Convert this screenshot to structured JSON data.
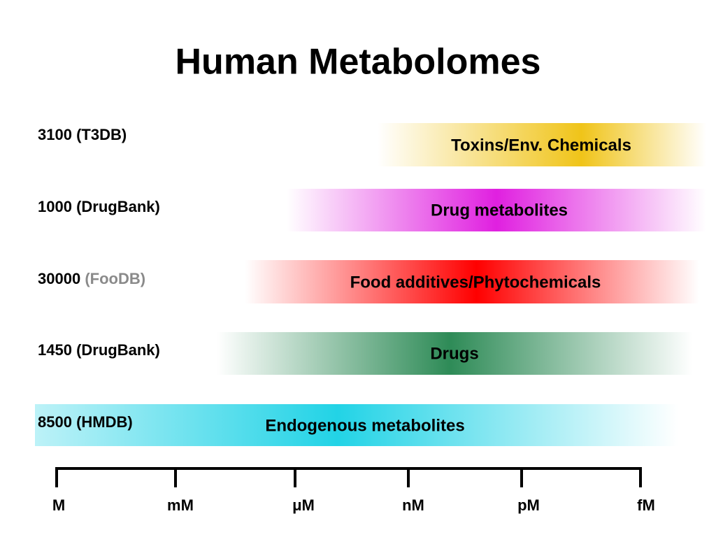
{
  "title": "Human Metabolomes",
  "rows": [
    {
      "count": "3100",
      "source": "(T3DB)",
      "label": "Toxins/Env. Chemicals"
    },
    {
      "count": "1000",
      "source": "(DrugBank)",
      "label": "Drug metabolites"
    },
    {
      "count": "30000",
      "source": "(FooDB)",
      "label": "Food additives/Phytochemicals"
    },
    {
      "count": "1450",
      "source": "(DrugBank)",
      "label": "Drugs"
    },
    {
      "count": "8500",
      "source": "(HMDB)",
      "label": "Endogenous metabolites"
    }
  ],
  "scale": [
    "M",
    "mM",
    "μM",
    "nM",
    "pM",
    "fM"
  ]
}
